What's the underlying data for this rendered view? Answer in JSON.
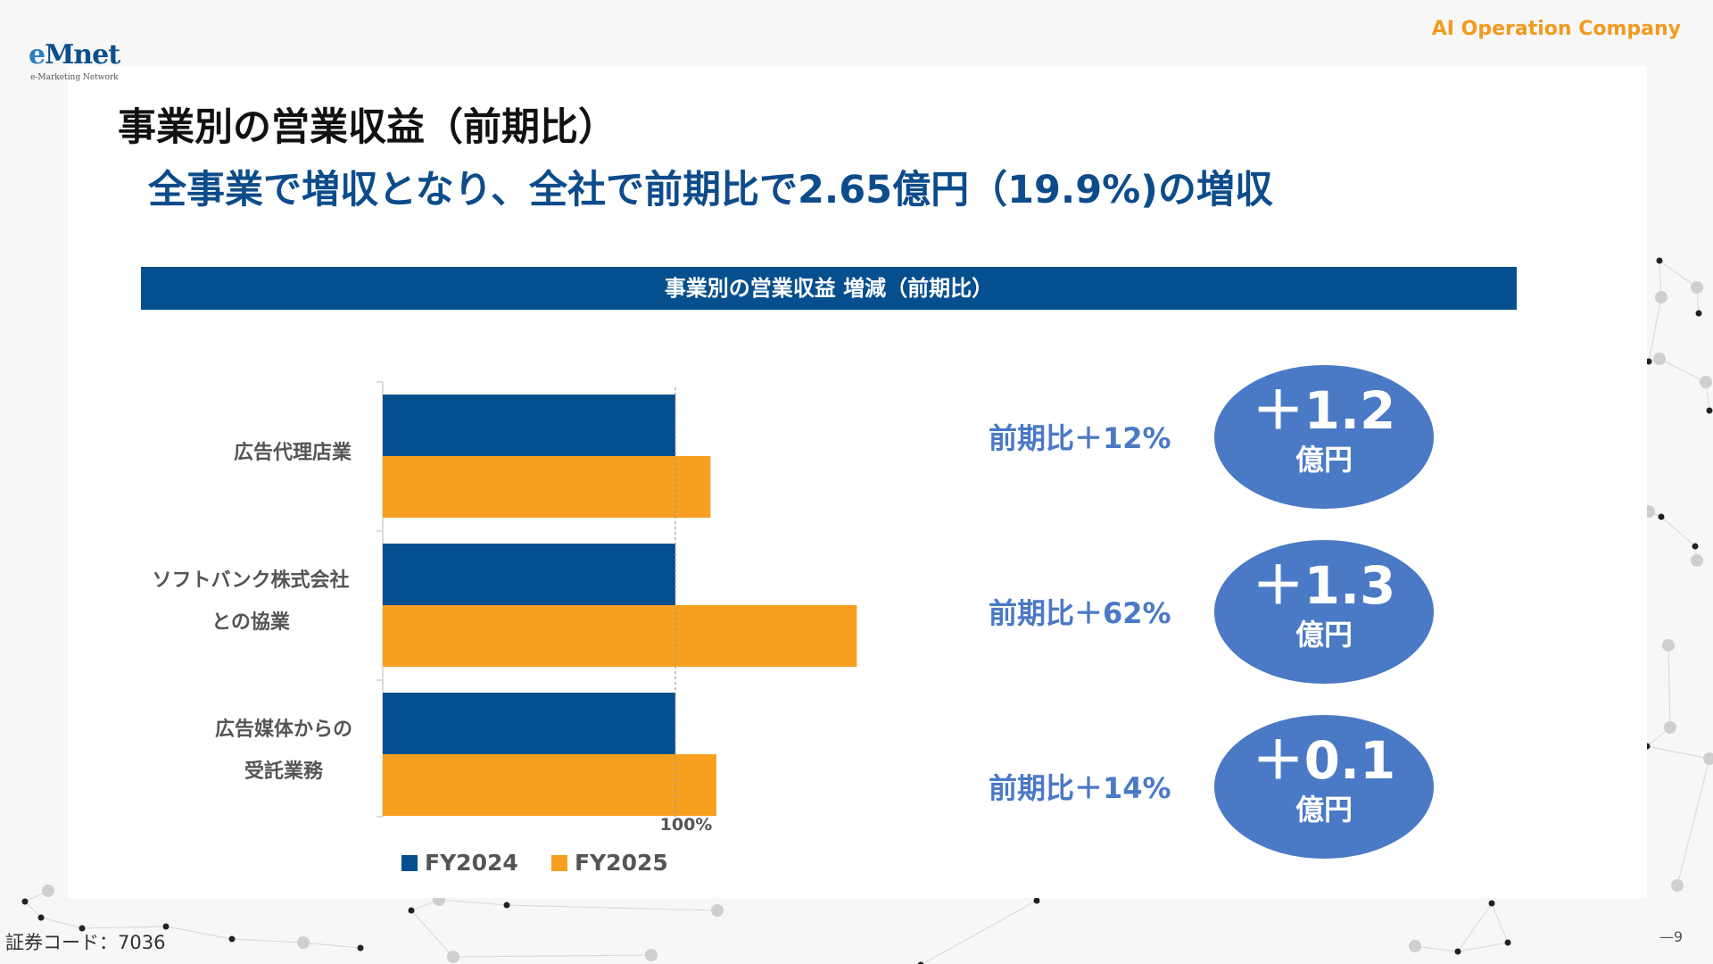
{
  "header": {
    "logo_main": "Mnet",
    "logo_e": "e",
    "logo_sub": "e-Marketing Network",
    "company": "AI Operation Company"
  },
  "title": "事業別の営業収益（前期比）",
  "headline": "全事業で増収となり、全社で前期比で2.65億円（19.9%)の増収",
  "chart_header": "事業別の営業収益 増減（前期比）",
  "colors": {
    "FY2024": "#064f8e",
    "FY2025": "#f7a020",
    "accent_blue": "#4a79c5",
    "header_orange": "#f29a1f"
  },
  "chart_data": {
    "type": "bar",
    "orientation": "horizontal",
    "categories": [
      [
        "広告代理店業"
      ],
      [
        "ソフトバンク株式会社",
        "との協業"
      ],
      [
        "広告媒体からの",
        "受託業務"
      ]
    ],
    "series": [
      {
        "name": "FY2024",
        "values": [
          100,
          100,
          100
        ]
      },
      {
        "name": "FY2025",
        "values": [
          112,
          162,
          114
        ]
      }
    ],
    "reference_line": {
      "value": 100,
      "label": "100%"
    },
    "xlim": [
      0,
      170
    ],
    "legend": "bottom-left",
    "grid": false
  },
  "changes": [
    {
      "text": "前期比＋12%",
      "value": "＋1.2",
      "unit": "億円"
    },
    {
      "text": "前期比＋62%",
      "value": "＋1.3",
      "unit": "億円"
    },
    {
      "text": "前期比＋14%",
      "value": "＋0.1",
      "unit": "億円"
    }
  ],
  "footer": {
    "code": "証券コード：7036",
    "page": "—9"
  }
}
